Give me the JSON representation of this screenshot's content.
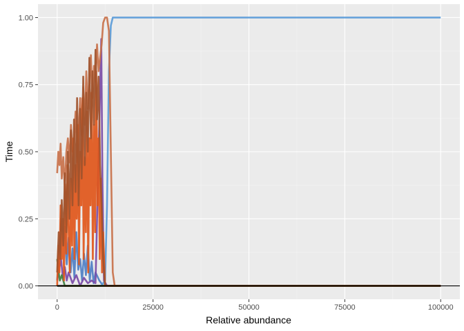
{
  "chart_data": {
    "type": "line",
    "title": "",
    "xlabel": "Relative abundance",
    "ylabel": "Time",
    "xlim": [
      -5000,
      105000
    ],
    "ylim": [
      -0.05,
      1.05
    ],
    "x_ticks": [
      0,
      25000,
      50000,
      75000,
      100000
    ],
    "x_tick_labels": [
      "0",
      "25000",
      "50000",
      "75000",
      "100000"
    ],
    "y_ticks": [
      0.0,
      0.25,
      0.5,
      0.75,
      1.0
    ],
    "y_tick_labels": [
      "0.00",
      "0.25",
      "0.50",
      "0.75",
      "1.00"
    ],
    "grid": true,
    "legend": "none",
    "reference_line_y": 0,
    "series": [
      {
        "color": "#4f7fc4",
        "points": [
          [
            0,
            0.02
          ],
          [
            500,
            0.12
          ],
          [
            1000,
            0.25
          ],
          [
            1500,
            0.15
          ],
          [
            2000,
            0.22
          ],
          [
            2500,
            0.08
          ],
          [
            3000,
            0.18
          ],
          [
            3500,
            0.05
          ],
          [
            4000,
            0.14
          ],
          [
            4500,
            0.03
          ],
          [
            5000,
            0.2
          ],
          [
            5500,
            0.06
          ],
          [
            6000,
            0.1
          ],
          [
            6500,
            0.02
          ],
          [
            7000,
            0.12
          ],
          [
            7500,
            0.04
          ],
          [
            8000,
            0.15
          ],
          [
            8500,
            0.02
          ],
          [
            9000,
            0.09
          ],
          [
            9500,
            0.01
          ],
          [
            10000,
            0.05
          ],
          [
            11000,
            0.02
          ],
          [
            12000,
            0
          ],
          [
            15000,
            0
          ],
          [
            100000,
            0
          ]
        ]
      },
      {
        "color": "#5a9bd8",
        "points": [
          [
            0,
            0
          ],
          [
            11500,
            0
          ],
          [
            12500,
            0.02
          ],
          [
            13000,
            0.3
          ],
          [
            13500,
            0.8
          ],
          [
            14000,
            0.97
          ],
          [
            14500,
            1.0
          ],
          [
            15000,
            1.0
          ],
          [
            100000,
            1.0
          ]
        ]
      },
      {
        "color": "#7a4ba6",
        "points": [
          [
            0,
            0.02
          ],
          [
            500,
            0.06
          ],
          [
            1000,
            0.1
          ],
          [
            1500,
            0.03
          ],
          [
            2000,
            0.07
          ],
          [
            2500,
            0.02
          ],
          [
            3000,
            0.05
          ],
          [
            4000,
            0.01
          ],
          [
            5000,
            0.04
          ],
          [
            6000,
            0
          ],
          [
            7000,
            0.03
          ],
          [
            8000,
            0.01
          ],
          [
            9000,
            0.02
          ],
          [
            10000,
            0.01
          ],
          [
            11000,
            0.6
          ],
          [
            11500,
            0.92
          ],
          [
            11800,
            0.4
          ],
          [
            12200,
            0.02
          ],
          [
            13000,
            0
          ],
          [
            100000,
            0
          ]
        ]
      },
      {
        "color": "#3e8040",
        "points": [
          [
            0,
            0.1
          ],
          [
            300,
            0.06
          ],
          [
            700,
            0.02
          ],
          [
            1200,
            0.04
          ],
          [
            2000,
            0
          ],
          [
            100000,
            0
          ]
        ]
      },
      {
        "color": "#c8714a",
        "points": [
          [
            0,
            0.42
          ],
          [
            300,
            0.5
          ],
          [
            600,
            0.45
          ],
          [
            900,
            0.53
          ],
          [
            1200,
            0.4
          ],
          [
            1600,
            0.48
          ],
          [
            2000,
            0.36
          ],
          [
            2400,
            0.5
          ],
          [
            2800,
            0.55
          ],
          [
            3200,
            0.46
          ],
          [
            3600,
            0.6
          ],
          [
            4000,
            0.5
          ],
          [
            4400,
            0.55
          ],
          [
            4800,
            0.65
          ],
          [
            5200,
            0.46
          ],
          [
            5600,
            0.58
          ],
          [
            6000,
            0.7
          ],
          [
            6400,
            0.56
          ],
          [
            6800,
            0.74
          ],
          [
            7200,
            0.6
          ],
          [
            7600,
            0.8
          ],
          [
            8000,
            0.66
          ],
          [
            8400,
            0.75
          ],
          [
            8800,
            0.86
          ],
          [
            9200,
            0.7
          ],
          [
            9600,
            0.82
          ],
          [
            10000,
            0.76
          ],
          [
            10400,
            0.9
          ],
          [
            10800,
            0.8
          ],
          [
            11200,
            0.85
          ],
          [
            11600,
            0.9
          ],
          [
            12000,
            0.98
          ],
          [
            12500,
            1.0
          ],
          [
            13000,
            1.0
          ],
          [
            13500,
            0.95
          ],
          [
            14000,
            0.5
          ],
          [
            14500,
            0.05
          ],
          [
            15000,
            0
          ],
          [
            100000,
            0
          ]
        ]
      },
      {
        "color": "#e0561a",
        "points": [
          [
            0,
            0
          ],
          [
            300,
            0.15
          ],
          [
            600,
            0.05
          ],
          [
            900,
            0.3
          ],
          [
            1200,
            0.1
          ],
          [
            1500,
            0.25
          ],
          [
            1800,
            0.02
          ],
          [
            2100,
            0.38
          ],
          [
            2400,
            0.12
          ],
          [
            2700,
            0.45
          ],
          [
            3000,
            0.2
          ],
          [
            3300,
            0.05
          ],
          [
            3600,
            0.4
          ],
          [
            3900,
            0.15
          ],
          [
            4200,
            0.55
          ],
          [
            4500,
            0.1
          ],
          [
            4800,
            0.45
          ],
          [
            5100,
            0.25
          ],
          [
            5400,
            0.6
          ],
          [
            5700,
            0.08
          ],
          [
            6000,
            0.5
          ],
          [
            6300,
            0.3
          ],
          [
            6600,
            0.7
          ],
          [
            6900,
            0.1
          ],
          [
            7200,
            0.48
          ],
          [
            7500,
            0.2
          ],
          [
            7800,
            0.65
          ],
          [
            8100,
            0.05
          ],
          [
            8400,
            0.55
          ],
          [
            8700,
            0.3
          ],
          [
            9000,
            0.72
          ],
          [
            9300,
            0.1
          ],
          [
            9600,
            0.6
          ],
          [
            9900,
            0.2
          ],
          [
            10200,
            0.8
          ],
          [
            10500,
            0.3
          ],
          [
            10800,
            0.55
          ],
          [
            11100,
            0.1
          ],
          [
            11400,
            0.4
          ],
          [
            11700,
            0.05
          ],
          [
            12000,
            0.2
          ],
          [
            12500,
            0
          ],
          [
            100000,
            0
          ]
        ]
      },
      {
        "color": "#a0522d",
        "points": [
          [
            0,
            0.05
          ],
          [
            400,
            0.2
          ],
          [
            800,
            0.1
          ],
          [
            1200,
            0.32
          ],
          [
            1600,
            0.15
          ],
          [
            2000,
            0.42
          ],
          [
            2400,
            0.2
          ],
          [
            2800,
            0.5
          ],
          [
            3200,
            0.25
          ],
          [
            3600,
            0.58
          ],
          [
            4000,
            0.3
          ],
          [
            4400,
            0.62
          ],
          [
            4800,
            0.35
          ],
          [
            5200,
            0.7
          ],
          [
            5600,
            0.3
          ],
          [
            6000,
            0.66
          ],
          [
            6400,
            0.4
          ],
          [
            6800,
            0.78
          ],
          [
            7200,
            0.45
          ],
          [
            7600,
            0.72
          ],
          [
            8000,
            0.5
          ],
          [
            8400,
            0.85
          ],
          [
            8800,
            0.55
          ],
          [
            9200,
            0.8
          ],
          [
            9600,
            0.6
          ],
          [
            10000,
            0.88
          ],
          [
            10400,
            0.62
          ],
          [
            10800,
            0.78
          ],
          [
            11200,
            0.45
          ],
          [
            11600,
            0.3
          ],
          [
            12000,
            0.1
          ],
          [
            12500,
            0
          ],
          [
            100000,
            0
          ]
        ]
      },
      {
        "color": "#3a2a10",
        "points": [
          [
            0,
            0
          ],
          [
            100000,
            0
          ]
        ]
      }
    ]
  }
}
